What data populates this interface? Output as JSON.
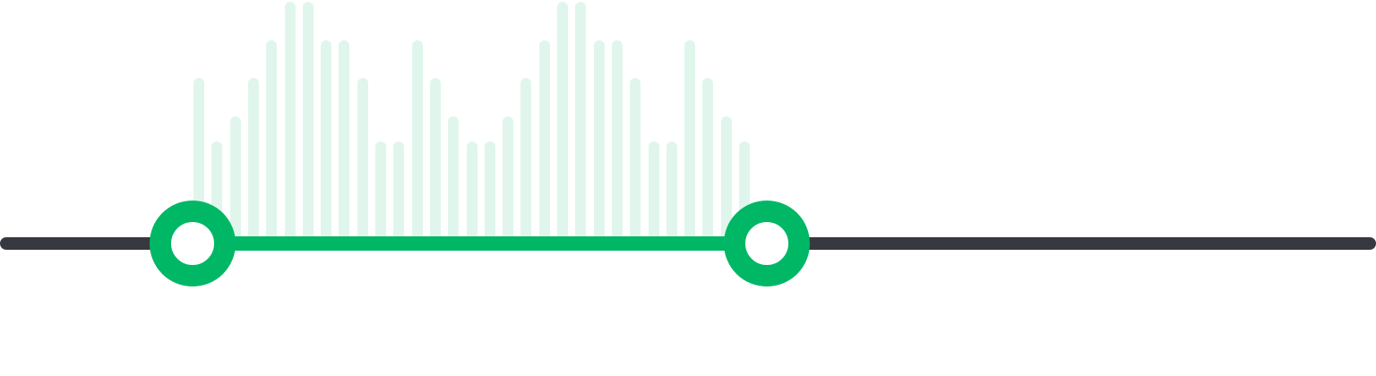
{
  "slider": {
    "min_fraction": 0.14,
    "max_fraction": 0.557,
    "histogram_levels": [
      0.65,
      0.4,
      0.5,
      0.65,
      0.8,
      0.95,
      0.95,
      0.8,
      0.8,
      0.65,
      0.4,
      0.4,
      0.8,
      0.65,
      0.5,
      0.4,
      0.4,
      0.5,
      0.65,
      0.8,
      0.95,
      0.95,
      0.8,
      0.8,
      0.65,
      0.4,
      0.4,
      0.8,
      0.65,
      0.5,
      0.4
    ],
    "colors": {
      "accent": "#00b765",
      "track": "#363940",
      "histogram": "#e0f6ec",
      "thumb_inner": "#ffffff"
    }
  }
}
